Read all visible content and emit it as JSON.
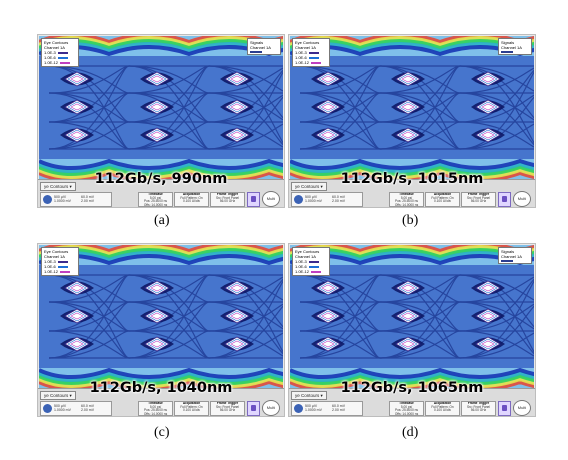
{
  "panels": [
    {
      "id": "a",
      "legend": {
        "title": "Eye Contours",
        "channel": "Channel 1A",
        "levels": [
          "1.0E-3",
          "1.0E-6",
          "1.0E-12"
        ]
      },
      "signals": {
        "title": "Signals",
        "channel": "Channel 1A"
      },
      "bottom_tab": "ye Contours",
      "channel_box": {
        "lines": [
          "500 µV/ ",
          "1.0000 mV",
          "60.0 mV",
          "2.00 mV"
        ]
      },
      "info_boxes": [
        {
          "header": "Timebase",
          "lines": [
            "5.00 ps/",
            "Pos: 25.5000 ns",
            "Offs: 14.0000 ns"
          ]
        },
        {
          "header": "Acquisition",
          "lines": [
            "Full Pattern: On",
            "0.100 UI/div"
          ]
        },
        {
          "header": "Frame Trigger",
          "lines": [
            "Src: Front Panel",
            "56.00 GHz"
          ]
        }
      ],
      "multiplier_label": "Multi",
      "caption": "112Gb/s, 990nm",
      "sublabel": "(a)"
    },
    {
      "id": "b",
      "legend": {
        "title": "Eye Contours",
        "channel": "Channel 1A",
        "levels": [
          "1.0E-3",
          "1.0E-6",
          "1.0E-12"
        ]
      },
      "signals": {
        "title": "Signals",
        "channel": "Channel 1A"
      },
      "bottom_tab": "ye Contours",
      "channel_box": {
        "lines": [
          "500 µV/ ",
          "1.0000 mV",
          "60.0 mV",
          "2.00 mV"
        ]
      },
      "info_boxes": [
        {
          "header": "Timebase",
          "lines": [
            "5.00 ps/",
            "Pos: 25.5000 ns",
            "Offs: 14.0000 ns"
          ]
        },
        {
          "header": "Acquisition",
          "lines": [
            "Full Pattern: On",
            "0.100 UI/div"
          ]
        },
        {
          "header": "Frame Trigger",
          "lines": [
            "Src: Front Panel",
            "56.00 GHz"
          ]
        }
      ],
      "multiplier_label": "Multi",
      "caption": "112Gb/s, 1015nm",
      "sublabel": "(b)"
    },
    {
      "id": "c",
      "legend": {
        "title": "Eye Contours",
        "channel": "Channel 1A",
        "levels": [
          "1.0E-3",
          "1.0E-6",
          "1.0E-12"
        ]
      },
      "signals": {
        "title": "Signals",
        "channel": "Channel 1A"
      },
      "bottom_tab": "ye Contours",
      "channel_box": {
        "lines": [
          "500 µV/ ",
          "1.0000 mV",
          "60.0 mV",
          "2.00 mV"
        ]
      },
      "info_boxes": [
        {
          "header": "Timebase",
          "lines": [
            "5.00 ps/",
            "Pos: 25.5000 ns",
            "Offs: 14.0000 ns"
          ]
        },
        {
          "header": "Acquisition",
          "lines": [
            "Full Pattern: On",
            "0.100 UI/div"
          ]
        },
        {
          "header": "Frame Trigger",
          "lines": [
            "Src: Front Panel",
            "56.00 GHz"
          ]
        }
      ],
      "multiplier_label": "Multi",
      "caption": "112Gb/s, 1040nm",
      "sublabel": "(c)"
    },
    {
      "id": "d",
      "legend": {
        "title": "Eye Contours",
        "channel": "Channel 1A",
        "levels": [
          "1.0E-3",
          "1.0E-6",
          "1.0E-12"
        ]
      },
      "signals": {
        "title": "Signals",
        "channel": "Channel 1A"
      },
      "bottom_tab": "ye Contours",
      "channel_box": {
        "lines": [
          "500 µV/ ",
          "1.0000 mV",
          "60.0 mV",
          "2.00 mV"
        ]
      },
      "info_boxes": [
        {
          "header": "Timebase",
          "lines": [
            "5.00 ps/",
            "Pos: 25.5000 ns",
            "Offs: 14.0000 ns"
          ]
        },
        {
          "header": "Acquisition",
          "lines": [
            "Full Pattern: On",
            "0.100 UI/div"
          ]
        },
        {
          "header": "Frame Trigger",
          "lines": [
            "Src: Front Panel",
            "56.00 GHz"
          ]
        }
      ],
      "multiplier_label": "Multi",
      "caption": "112Gb/s, 1065nm",
      "sublabel": "(d)"
    }
  ],
  "colors": {
    "eye_background": "#7fc0ea",
    "eye_dense": "#1736b5",
    "eye_edge_green": "#2fd15a",
    "eye_edge_yellow": "#e7e34a",
    "eye_edge_red": "#e34a3a",
    "contour_1e3": "#3c2a8c",
    "contour_1e6": "#1e6fd6",
    "contour_1e12": "#c040c0"
  },
  "icons": [
    "channel-icon",
    "lock-icon",
    "multiplier-icon"
  ]
}
